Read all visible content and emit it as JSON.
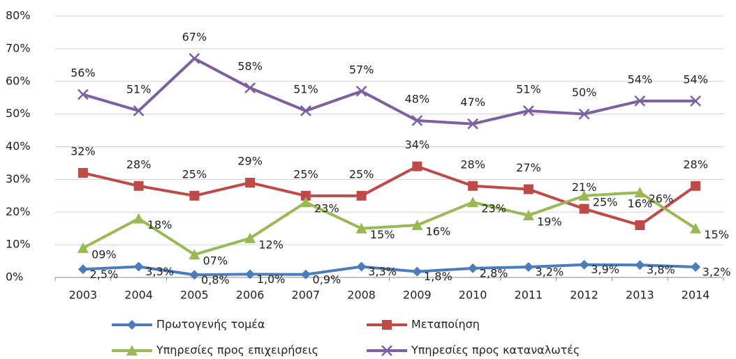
{
  "chart_data": {
    "type": "line",
    "categories": [
      "2003",
      "2004",
      "2005",
      "2006",
      "2007",
      "2008",
      "2009",
      "2010",
      "2011",
      "2012",
      "2013",
      "2014"
    ],
    "ylim": [
      0,
      80
    ],
    "yticks": [
      {
        "value": 0,
        "label": "0%"
      },
      {
        "value": 10,
        "label": "10%"
      },
      {
        "value": 20,
        "label": "20%"
      },
      {
        "value": 30,
        "label": "30%"
      },
      {
        "value": 40,
        "label": "40%"
      },
      {
        "value": 50,
        "label": "50%"
      },
      {
        "value": 60,
        "label": "60%"
      },
      {
        "value": 70,
        "label": "70%"
      },
      {
        "value": 80,
        "label": "80%"
      }
    ],
    "grid": true,
    "series": [
      {
        "name": "Πρωτογενής τομέα",
        "color": "#4a7ebb",
        "marker": "diamond",
        "values": [
          2.5,
          3.3,
          0.8,
          1.0,
          0.9,
          3.3,
          1.8,
          2.8,
          3.2,
          3.9,
          3.8,
          3.2
        ],
        "value_labels": [
          "2,5%",
          "3,3%",
          "0,8%",
          "1,0%",
          "0,9%",
          "3,3%",
          "1,8%",
          "2,8%",
          "3,2%",
          "3,9%",
          "3,8%",
          "3,2%"
        ]
      },
      {
        "name": "Μεταποίηση",
        "color": "#be4b48",
        "marker": "square",
        "values": [
          32,
          28,
          25,
          29,
          25,
          25,
          34,
          28,
          27,
          21,
          16,
          28
        ],
        "value_labels": [
          "32%",
          "28%",
          "25%",
          "29%",
          "25%",
          "25%",
          "34%",
          "28%",
          "27%",
          "21%",
          "16%",
          "28%"
        ]
      },
      {
        "name": "Υπηρεσίες προς επιχειρήσεις",
        "color": "#98b954",
        "marker": "triangle",
        "values": [
          9,
          18,
          7,
          12,
          23,
          15,
          16,
          23,
          19,
          25,
          26,
          15
        ],
        "value_labels": [
          "09%",
          "18%",
          "07%",
          "12%",
          "23%",
          "15%",
          "16%",
          "23%",
          "19%",
          "25%",
          "26%",
          "15%"
        ]
      },
      {
        "name": "Υπηρεσίες προς καταναλωτές",
        "color": "#7d60a0",
        "marker": "x",
        "values": [
          56,
          51,
          67,
          58,
          51,
          57,
          48,
          47,
          51,
          50,
          54,
          54
        ],
        "value_labels": [
          "56%",
          "51%",
          "67%",
          "58%",
          "51%",
          "57%",
          "48%",
          "47%",
          "51%",
          "50%",
          "54%",
          "54%"
        ]
      }
    ]
  }
}
